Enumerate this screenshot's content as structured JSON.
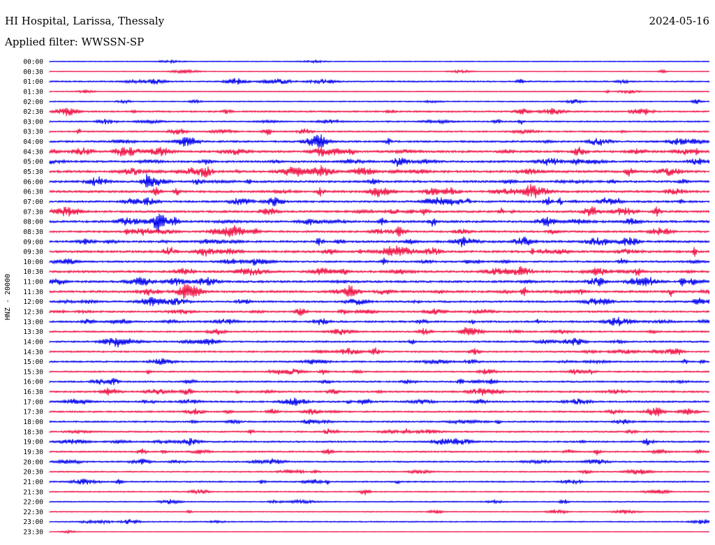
{
  "header": {
    "station": "HI Hospital, Larissa, Thessaly",
    "date": "2024-05-16",
    "filter": "Applied filter: WWSSN-SP"
  },
  "chart_data": {
    "type": "line",
    "title": "HI Hospital, Larissa, Thessaly",
    "subtitle": "Applied filter: WWSSN-SP",
    "date": "2024-05-16",
    "ylabel": "HNZ - 20000",
    "row_interval_minutes": 30,
    "time_labels": [
      "00:00",
      "00:30",
      "01:00",
      "01:30",
      "02:00",
      "02:30",
      "03:00",
      "03:30",
      "04:00",
      "04:30",
      "05:00",
      "05:30",
      "06:00",
      "06:30",
      "07:00",
      "07:30",
      "08:00",
      "08:30",
      "09:00",
      "09:30",
      "10:00",
      "10:30",
      "11:00",
      "11:30",
      "12:00",
      "12:30",
      "13:00",
      "13:30",
      "14:00",
      "14:30",
      "15:00",
      "15:30",
      "16:00",
      "16:30",
      "17:00",
      "17:30",
      "18:00",
      "18:30",
      "19:00",
      "19:30",
      "20:00",
      "20:30",
      "21:00",
      "21:30",
      "22:00",
      "22:30",
      "23:00",
      "23:30"
    ],
    "trace_colors": [
      "#0000ee",
      "#ee1144"
    ],
    "activity_per_row": [
      0.12,
      0.14,
      0.35,
      0.15,
      0.25,
      0.45,
      0.35,
      0.4,
      0.55,
      0.7,
      0.6,
      0.75,
      0.65,
      0.7,
      0.6,
      0.65,
      0.7,
      0.6,
      0.65,
      0.7,
      0.55,
      0.7,
      0.65,
      0.7,
      0.55,
      0.5,
      0.55,
      0.45,
      0.5,
      0.45,
      0.45,
      0.4,
      0.45,
      0.5,
      0.5,
      0.45,
      0.45,
      0.4,
      0.45,
      0.4,
      0.4,
      0.3,
      0.35,
      0.25,
      0.25,
      0.2,
      0.25,
      0.05
    ],
    "grid": false,
    "legend": "none"
  }
}
